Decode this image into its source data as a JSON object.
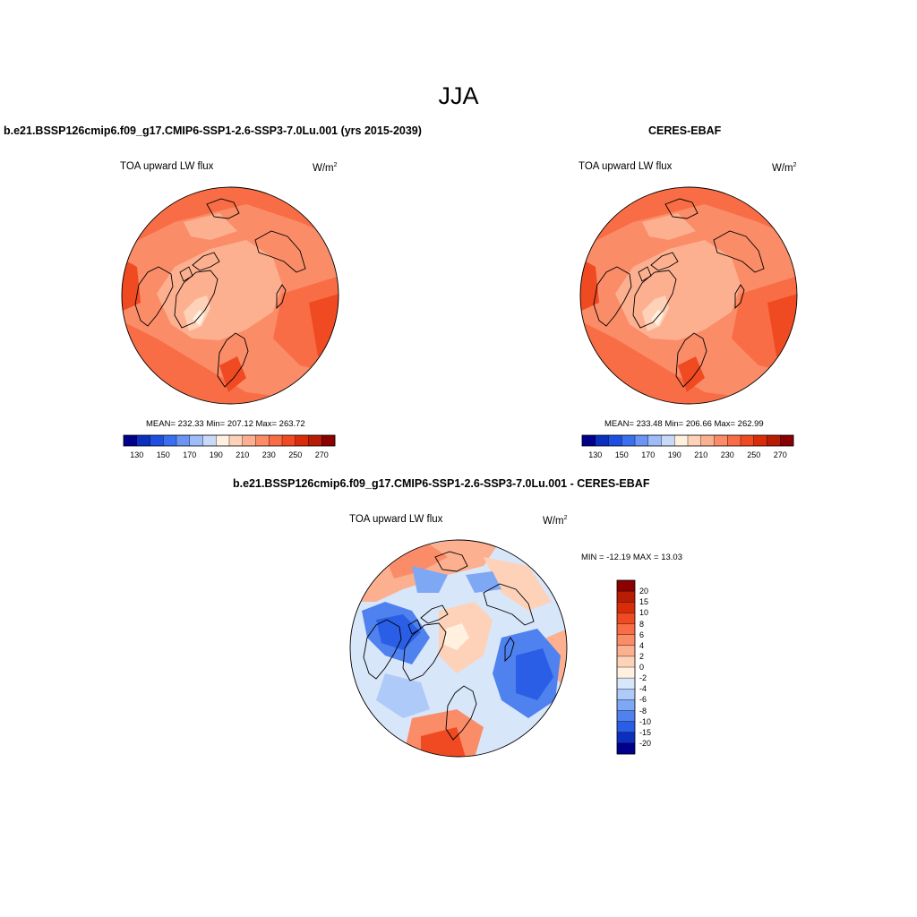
{
  "page": {
    "title": "JJA"
  },
  "panels": [
    {
      "title": "b.e21.BSSP126cmip6.f09_g17.CMIP6-SSP1-2.6-SSP3-7.0Lu.001 (yrs 2015-2039)",
      "variable": "TOA upward LW flux",
      "units": "W/m",
      "units_sup": "2",
      "stats": "MEAN= 232.33  Min= 207.12  Max= 263.72"
    },
    {
      "title": "CERES-EBAF",
      "variable": "TOA upward LW flux",
      "units": "W/m",
      "units_sup": "2",
      "stats": "MEAN= 233.48  Min= 206.66  Max= 262.99"
    },
    {
      "title": "b.e21.BSSP126cmip6.f09_g17.CMIP6-SSP1-2.6-SSP3-7.0Lu.001 - CERES-EBAF",
      "variable": "TOA upward LW flux",
      "units": "W/m",
      "units_sup": "2",
      "stats": "MIN = -12.19 MAX =  13.03"
    }
  ],
  "colorbar_main": {
    "tick_labels": [
      "130",
      "150",
      "170",
      "190",
      "210",
      "230",
      "250",
      "270"
    ],
    "colors": [
      "#00008b",
      "#0c2fbd",
      "#1f4fe0",
      "#3a70f0",
      "#6b95f5",
      "#9ebcf8",
      "#c8daf8",
      "#fff0e0",
      "#fed2b8",
      "#fdb090",
      "#fb8c68",
      "#f86d45",
      "#f04a22",
      "#d92d0a",
      "#b71c05",
      "#8b0000"
    ]
  },
  "colorbar_diff": {
    "tick_labels": [
      "20",
      "15",
      "10",
      "8",
      "6",
      "4",
      "2",
      "0",
      "-2",
      "-4",
      "-6",
      "-8",
      "-10",
      "-15",
      "-20"
    ],
    "colors": [
      "#8b0000",
      "#b71c05",
      "#d92d0a",
      "#f04a22",
      "#f86d45",
      "#fb8c68",
      "#fdb090",
      "#fed2b8",
      "#fff0e0",
      "#d8e6fa",
      "#aecaf8",
      "#7ea7f4",
      "#4f82ee",
      "#2a5ee6",
      "#0c2fbd",
      "#00008b"
    ]
  }
}
